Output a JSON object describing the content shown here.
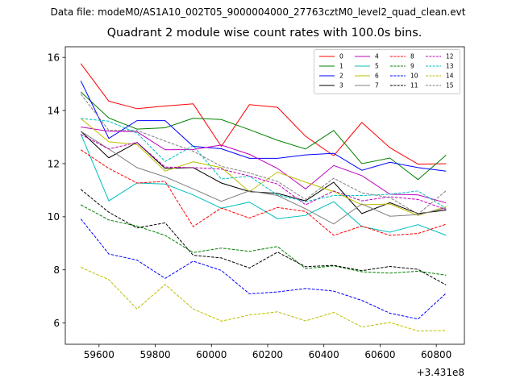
{
  "header": {
    "data_file": "Data file: modeM0/AS1A10_002T05_9000004000_27763cztM0_level2_quad_clean.evt"
  },
  "chart_data": {
    "type": "line",
    "title": "Quadrant 2 module wise count rates with 100.0s bins.",
    "xlabel": "",
    "ylabel": "",
    "x_offset_label": "+3.431e8",
    "x": [
      59535,
      59635,
      59735,
      59835,
      59935,
      60035,
      60135,
      60235,
      60335,
      60435,
      60535,
      60635,
      60735,
      60835
    ],
    "xlim": [
      59480,
      60900
    ],
    "ylim": [
      5.2,
      16.4
    ],
    "xticks": [
      59600,
      59800,
      60000,
      60200,
      60400,
      60600,
      60800
    ],
    "yticks": [
      6,
      8,
      10,
      12,
      14,
      16
    ],
    "grid": false,
    "legend_position": "top-right",
    "series": [
      {
        "name": "0",
        "color": "#ff0000",
        "dash": "solid",
        "values": [
          15.77,
          14.35,
          14.07,
          14.17,
          14.25,
          12.65,
          14.22,
          14.12,
          13.03,
          12.3,
          13.55,
          12.6,
          11.98,
          12.0
        ]
      },
      {
        "name": "1",
        "color": "#008000",
        "dash": "solid",
        "values": [
          14.7,
          13.72,
          13.3,
          13.35,
          13.71,
          13.66,
          13.28,
          12.88,
          12.55,
          13.25,
          12.0,
          12.21,
          11.4,
          12.32
        ]
      },
      {
        "name": "2",
        "color": "#0000ff",
        "dash": "solid",
        "values": [
          15.12,
          12.95,
          13.62,
          13.62,
          12.65,
          12.56,
          12.2,
          12.2,
          12.33,
          12.39,
          11.75,
          12.05,
          11.85,
          11.72
        ]
      },
      {
        "name": "3",
        "color": "#000000",
        "dash": "solid",
        "values": [
          13.22,
          12.22,
          12.8,
          11.82,
          11.85,
          11.27,
          10.95,
          10.88,
          10.6,
          11.3,
          10.12,
          10.53,
          10.12,
          10.25
        ]
      },
      {
        "name": "4",
        "color": "#bf00bf",
        "dash": "solid",
        "values": [
          13.38,
          13.22,
          13.2,
          12.52,
          12.53,
          12.7,
          12.35,
          11.82,
          11.05,
          11.93,
          11.55,
          10.85,
          10.82,
          10.52
        ]
      },
      {
        "name": "5",
        "color": "#00bfbf",
        "dash": "solid",
        "values": [
          13.12,
          10.6,
          11.27,
          11.23,
          10.82,
          10.32,
          10.55,
          9.93,
          10.05,
          10.57,
          9.63,
          9.42,
          9.7,
          9.3
        ]
      },
      {
        "name": "6",
        "color": "#bfbf00",
        "dash": "solid",
        "values": [
          13.7,
          12.82,
          12.72,
          11.72,
          12.07,
          11.85,
          10.95,
          11.68,
          11.3,
          10.95,
          10.45,
          10.48,
          10.05,
          10.38
        ]
      },
      {
        "name": "7",
        "color": "#808080",
        "dash": "solid",
        "values": [
          13.22,
          12.55,
          11.85,
          11.5,
          11.05,
          10.58,
          10.98,
          10.8,
          10.3,
          9.73,
          10.48,
          10.02,
          10.08,
          10.33
        ]
      },
      {
        "name": "8",
        "color": "#ff0000",
        "dash": "dashed",
        "values": [
          12.52,
          11.82,
          11.27,
          11.33,
          9.63,
          10.33,
          9.95,
          10.35,
          10.2,
          9.3,
          9.65,
          9.3,
          9.37,
          9.72
        ]
      },
      {
        "name": "9",
        "color": "#008000",
        "dash": "dashed",
        "values": [
          10.45,
          9.88,
          9.65,
          9.3,
          8.65,
          8.82,
          8.7,
          8.88,
          8.05,
          8.15,
          7.93,
          7.88,
          7.95,
          7.8
        ]
      },
      {
        "name": "10",
        "color": "#0000ff",
        "dash": "dashed",
        "values": [
          9.92,
          8.6,
          8.37,
          7.68,
          8.33,
          7.98,
          7.1,
          7.17,
          7.3,
          7.2,
          6.85,
          6.37,
          6.15,
          7.12
        ]
      },
      {
        "name": "11",
        "color": "#000000",
        "dash": "dashed",
        "values": [
          11.03,
          10.17,
          9.58,
          9.77,
          8.55,
          8.45,
          8.07,
          8.67,
          8.12,
          8.17,
          7.97,
          8.13,
          8.02,
          7.43
        ]
      },
      {
        "name": "12",
        "color": "#bf00bf",
        "dash": "dashed",
        "values": [
          13.1,
          12.55,
          12.8,
          11.87,
          11.85,
          11.8,
          11.53,
          11.23,
          10.45,
          10.97,
          10.6,
          10.75,
          10.65,
          10.27
        ]
      },
      {
        "name": "13",
        "color": "#00bfbf",
        "dash": "dashed",
        "values": [
          13.7,
          13.6,
          13.15,
          12.08,
          12.68,
          11.42,
          11.53,
          10.82,
          10.57,
          10.8,
          10.8,
          10.85,
          10.97,
          10.32
        ]
      },
      {
        "name": "14",
        "color": "#bfbf00",
        "dash": "dashed",
        "values": [
          8.1,
          7.63,
          6.53,
          7.45,
          6.53,
          6.07,
          6.3,
          6.42,
          6.08,
          6.4,
          5.85,
          6.02,
          5.7,
          5.72
        ]
      },
      {
        "name": "15",
        "color": "#808080",
        "dash": "dashed",
        "values": [
          14.62,
          13.25,
          13.25,
          12.85,
          12.47,
          11.9,
          11.65,
          11.33,
          10.65,
          11.45,
          10.9,
          10.72,
          10.1,
          10.98
        ]
      }
    ]
  }
}
